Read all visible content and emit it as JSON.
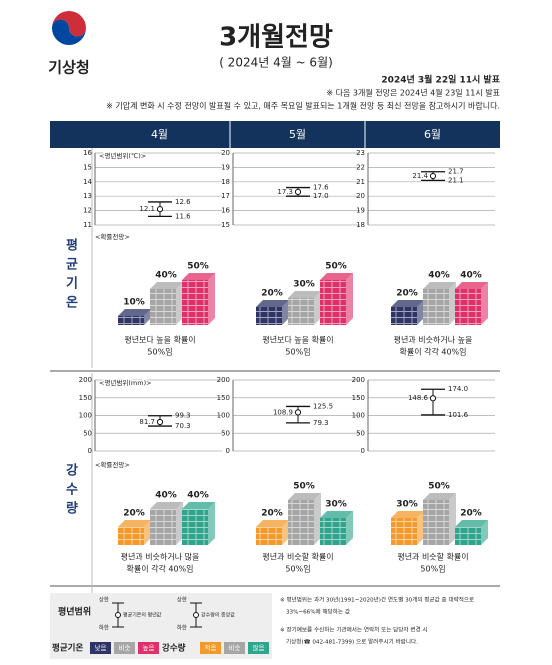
{
  "header": {
    "org": "기상청",
    "title": "3개월전망",
    "period": "( 2024년 4월 ~ 6월)",
    "issued": "2024년 3월 22일 11시 발표",
    "notes": [
      "※ 다음 3개월 전망은 2024년 4월 23일 11시 발표",
      "※ 기압계 변화 시 수정 전망이 발표될 수 있고, 매주 목요일 발표되는 1개월 전망 등 최신 전망을 참고하시기 바랍니다."
    ]
  },
  "months": [
    "4월",
    "5월",
    "6월"
  ],
  "sections": [
    {
      "label": "평균기온",
      "range_label": "<평년범위(℃)>",
      "prob_label": "<확률전망>",
      "colors": [
        "#2e3566",
        "#a6a6a6",
        "#e0306a"
      ],
      "charts": [
        {
          "ylim": [
            11,
            16
          ],
          "yticks": [
            11,
            12,
            13,
            14,
            15,
            16
          ],
          "values": [
            12.1,
            12.6,
            11.6
          ],
          "value_labels": [
            "12.1",
            "12.6",
            "11.6"
          ]
        },
        {
          "ylim": [
            15,
            20
          ],
          "yticks": [
            15,
            16,
            17,
            18,
            19,
            20
          ],
          "values": [
            17.3,
            17.6,
            17.0
          ],
          "value_labels": [
            "17.3",
            "17.6",
            "17.0"
          ]
        },
        {
          "ylim": [
            18,
            23
          ],
          "yticks": [
            18,
            19,
            20,
            21,
            22,
            23
          ],
          "values": [
            21.4,
            21.7,
            21.1
          ],
          "value_labels": [
            "21.4",
            "21.7",
            "21.1"
          ]
        }
      ],
      "probabilities": [
        {
          "values": [
            10,
            40,
            50
          ],
          "value_labels": [
            "10%",
            "40%",
            "50%"
          ],
          "caption": [
            "평년보다 높을 확률이",
            "50%임"
          ]
        },
        {
          "values": [
            20,
            30,
            50
          ],
          "value_labels": [
            "20%",
            "30%",
            "50%"
          ],
          "caption": [
            "평년보다 높을 확률이",
            "50%임"
          ]
        },
        {
          "values": [
            20,
            40,
            40
          ],
          "value_labels": [
            "20%",
            "40%",
            "40%"
          ],
          "caption": [
            "평년과 비슷하거나 높을",
            "확률이 각각 40%임"
          ]
        }
      ]
    },
    {
      "label": "강수량",
      "range_label": "<평년범위(mm)>",
      "prob_label": "<확률전망>",
      "colors": [
        "#f39a2b",
        "#a6a6a6",
        "#2fa58c"
      ],
      "charts": [
        {
          "ylim": [
            0,
            200
          ],
          "yticks": [
            0,
            50,
            100,
            150,
            200
          ],
          "values": [
            81.7,
            99.3,
            70.3
          ],
          "value_labels": [
            "81.7",
            "99.3",
            "70.3"
          ]
        },
        {
          "ylim": [
            0,
            200
          ],
          "yticks": [
            0,
            50,
            100,
            150,
            200
          ],
          "values": [
            108.9,
            125.5,
            79.3
          ],
          "value_labels": [
            "108.9",
            "125.5",
            "79.3"
          ]
        },
        {
          "ylim": [
            0,
            200
          ],
          "yticks": [
            0,
            50,
            100,
            150,
            200
          ],
          "values": [
            148.6,
            174.0,
            101.6
          ],
          "value_labels": [
            "148.6",
            "174.0",
            "101.6"
          ]
        }
      ],
      "probabilities": [
        {
          "values": [
            20,
            40,
            40
          ],
          "value_labels": [
            "20%",
            "40%",
            "40%"
          ],
          "caption": [
            "평년과 비슷하거나 많을",
            "확률이 각각 40%임"
          ]
        },
        {
          "values": [
            20,
            50,
            30
          ],
          "value_labels": [
            "20%",
            "50%",
            "30%"
          ],
          "caption": [
            "평년과 비슷할 확률이",
            "50%임"
          ]
        },
        {
          "values": [
            30,
            50,
            20
          ],
          "value_labels": [
            "30%",
            "50%",
            "20%"
          ],
          "caption": [
            "평년과 비슷할 확률이",
            "50%임"
          ]
        }
      ]
    }
  ],
  "legend": {
    "title": "평년범위",
    "upper": "상한",
    "lower": "하한",
    "temp_center": "평균기온의 평년값",
    "precip_center": "강수량의 중앙값",
    "temp": {
      "label": "평균기온",
      "items": [
        "낮음",
        "비슷",
        "높음"
      ]
    },
    "precip": {
      "label": "강수량",
      "items": [
        "적음",
        "비슷",
        "많음"
      ]
    },
    "notes": [
      "※ 평년범위는 과거 30년(1991~2020년)간 연도별 30개의 평균값 중 대략적으로",
      "33%~66%에 해당하는 값",
      "※ 장기예보를 수신하는 기관에서는 연락처 또는 담당자 변경 시",
      "기상청(☎ 042-481-7399) 으로 알려주시기 바랍니다."
    ]
  }
}
